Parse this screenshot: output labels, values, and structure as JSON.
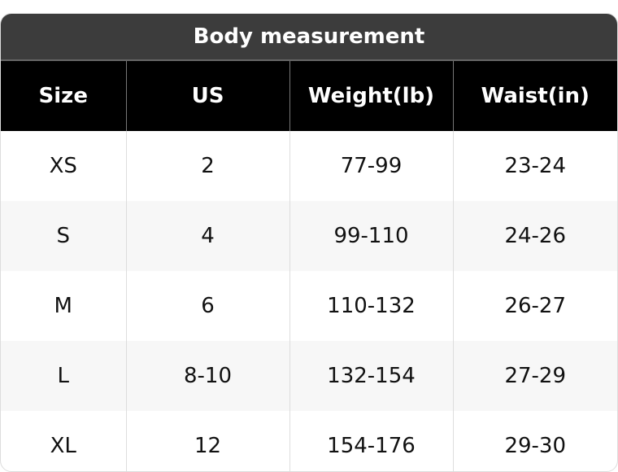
{
  "title": "Body measurement",
  "headers": [
    "Size",
    "US",
    "Weight(lb)",
    "Waist(in)"
  ],
  "rows": [
    [
      "XS",
      "2",
      "77-99",
      "23-24"
    ],
    [
      "S",
      "4",
      "99-110",
      "24-26"
    ],
    [
      "M",
      "6",
      "110-132",
      "26-27"
    ],
    [
      "L",
      "8-10",
      "132-154",
      "27-29"
    ],
    [
      "XL",
      "12",
      "154-176",
      "29-30"
    ]
  ]
}
